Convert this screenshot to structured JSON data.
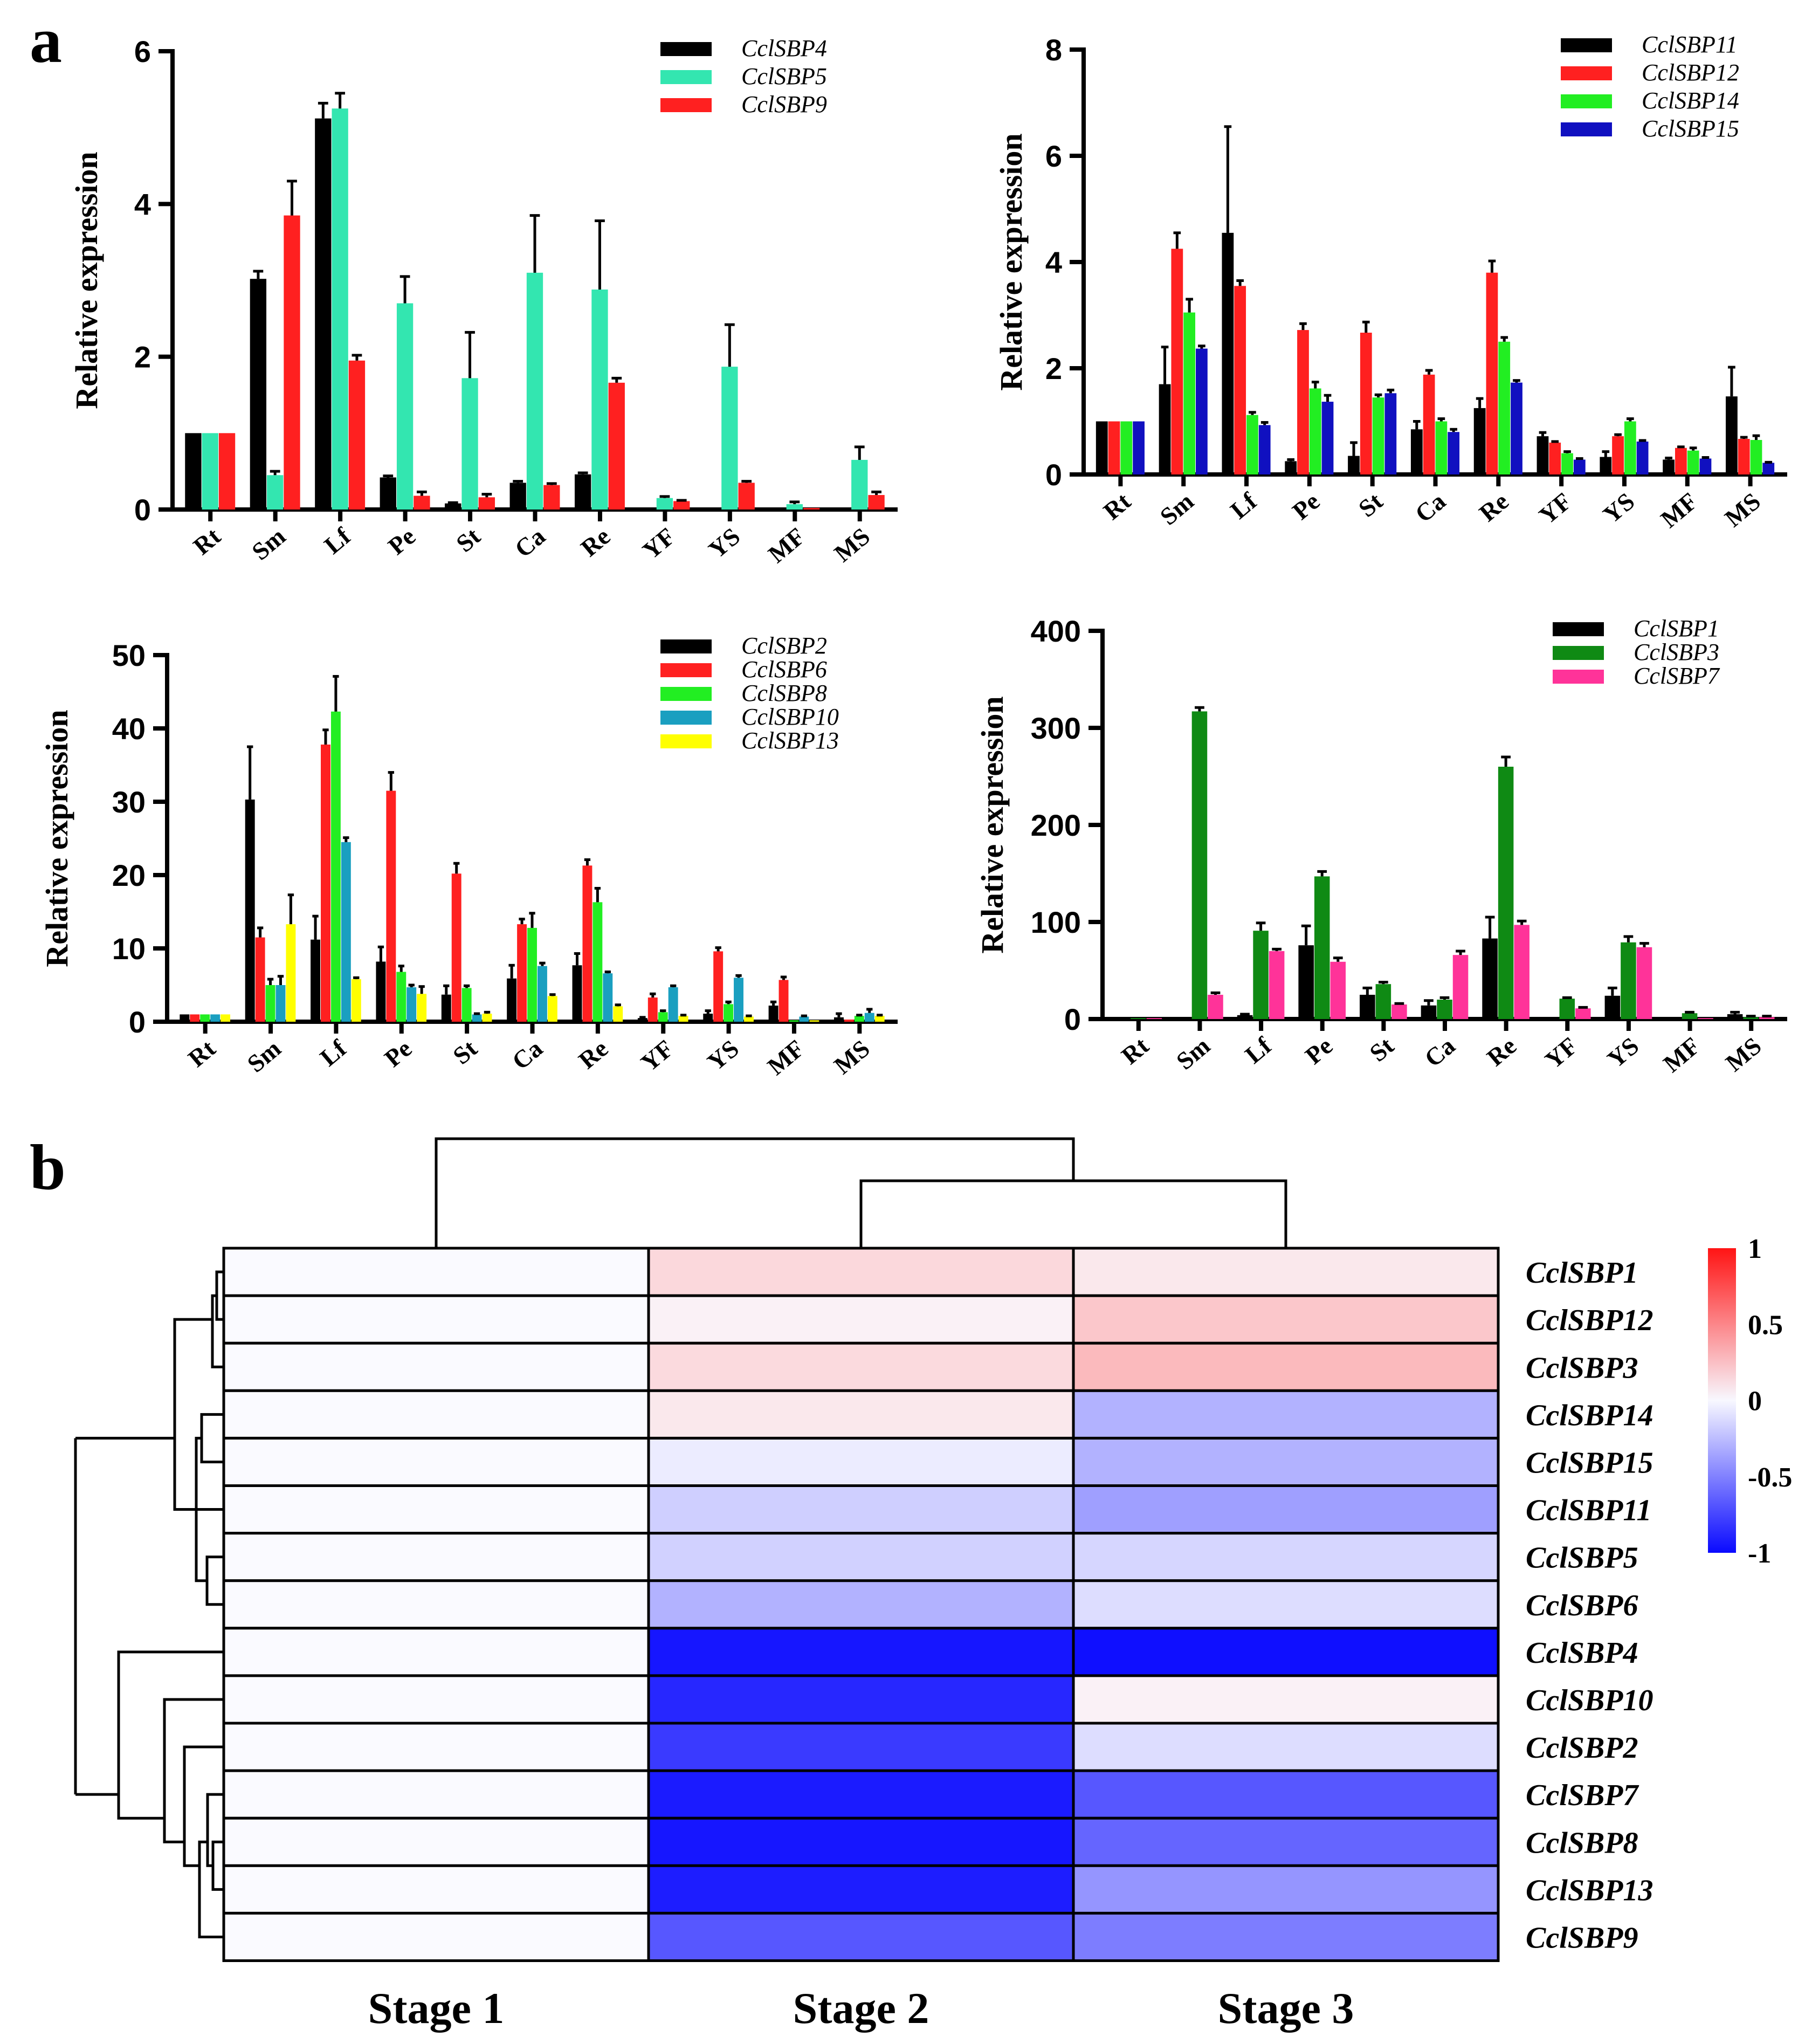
{
  "panel_labels": {
    "a": "a",
    "b": "b"
  },
  "chart_data": [
    {
      "type": "bar",
      "ylabel": "Relative expression",
      "categories": [
        "Rt",
        "Sm",
        "Lf",
        "Pe",
        "St",
        "Ca",
        "Re",
        "YF",
        "YS",
        "MF",
        "MS"
      ],
      "ylim": [
        0,
        6
      ],
      "yticks": [
        0,
        2,
        4,
        6
      ],
      "series": [
        {
          "name": "CclSBP4",
          "color": "#000000",
          "values": [
            1,
            3.02,
            5.12,
            0.42,
            0.08,
            0.35,
            0.46,
            0.02,
            0.0,
            0.0,
            0.02
          ],
          "errors": [
            0,
            0.1,
            0.2,
            0.02,
            0.01,
            0.02,
            0.02,
            0,
            0,
            0,
            0
          ]
        },
        {
          "name": "CclSBP5",
          "color": "#33e6b0",
          "values": [
            1,
            0.45,
            5.25,
            2.7,
            1.72,
            3.1,
            2.88,
            0.15,
            1.87,
            0.07,
            0.65
          ],
          "errors": [
            0,
            0.05,
            0.2,
            0.35,
            0.6,
            0.75,
            0.9,
            0.02,
            0.55,
            0.03,
            0.17
          ]
        },
        {
          "name": "CclSBP9",
          "color": "#ff2020",
          "values": [
            1,
            3.85,
            1.95,
            0.18,
            0.16,
            0.32,
            1.66,
            0.11,
            0.35,
            0.02,
            0.19
          ],
          "errors": [
            0,
            0.45,
            0.07,
            0.05,
            0.04,
            0.02,
            0.06,
            0.01,
            0.02,
            0,
            0.04
          ]
        }
      ]
    },
    {
      "type": "bar",
      "ylabel": "Relative expression",
      "categories": [
        "Rt",
        "Sm",
        "Lf",
        "Pe",
        "St",
        "Ca",
        "Re",
        "YF",
        "YS",
        "MF",
        "MS"
      ],
      "ylim": [
        0,
        8
      ],
      "yticks": [
        0,
        2,
        4,
        6,
        8
      ],
      "series": [
        {
          "name": "CclSBP11",
          "color": "#000000",
          "values": [
            1,
            1.7,
            4.55,
            0.25,
            0.35,
            0.85,
            1.25,
            0.72,
            0.33,
            0.28,
            1.47
          ],
          "errors": [
            0,
            0.7,
            2.0,
            0.03,
            0.25,
            0.15,
            0.18,
            0.07,
            0.1,
            0.03,
            0.55
          ]
        },
        {
          "name": "CclSBP12",
          "color": "#ff2020",
          "values": [
            1,
            4.25,
            3.55,
            2.72,
            2.67,
            1.88,
            3.8,
            0.6,
            0.72,
            0.5,
            0.67
          ],
          "errors": [
            0,
            0.3,
            0.1,
            0.12,
            0.2,
            0.08,
            0.22,
            0.02,
            0.03,
            0.02,
            0.03
          ]
        },
        {
          "name": "CclSBP14",
          "color": "#22ee22",
          "values": [
            1,
            3.05,
            1.12,
            1.62,
            1.45,
            1.0,
            2.5,
            0.4,
            1.0,
            0.45,
            0.65
          ],
          "errors": [
            0,
            0.25,
            0.05,
            0.12,
            0.05,
            0.05,
            0.08,
            0.03,
            0.05,
            0.05,
            0.08
          ]
        },
        {
          "name": "CclSBP15",
          "color": "#1010c0",
          "values": [
            1,
            2.37,
            0.93,
            1.37,
            1.53,
            0.8,
            1.73,
            0.28,
            0.62,
            0.3,
            0.22
          ],
          "errors": [
            0,
            0.05,
            0.05,
            0.12,
            0.06,
            0.05,
            0.04,
            0.02,
            0.02,
            0.02,
            0.01
          ]
        }
      ]
    },
    {
      "type": "bar",
      "ylabel": "Relative expression",
      "categories": [
        "Rt",
        "Sm",
        "Lf",
        "Pe",
        "St",
        "Ca",
        "Re",
        "YF",
        "YS",
        "MF",
        "MS"
      ],
      "ylim": [
        0,
        50
      ],
      "yticks": [
        0,
        10,
        20,
        30,
        40,
        50
      ],
      "series": [
        {
          "name": "CclSBP2",
          "color": "#000000",
          "values": [
            1,
            30.3,
            11.2,
            8.2,
            3.7,
            5.9,
            7.7,
            0.5,
            1.1,
            2.2,
            0.6
          ],
          "errors": [
            0,
            7.2,
            3.2,
            2.0,
            1.2,
            1.8,
            1.6,
            0.1,
            0.4,
            0.5,
            0.5
          ]
        },
        {
          "name": "CclSBP6",
          "color": "#ff2020",
          "values": [
            1,
            11.5,
            37.8,
            31.5,
            20.2,
            13.3,
            21.3,
            3.3,
            9.6,
            5.7,
            0.3
          ],
          "errors": [
            0,
            1.3,
            2.0,
            2.5,
            1.4,
            0.7,
            0.8,
            0.5,
            0.5,
            0.4,
            0
          ]
        },
        {
          "name": "CclSBP8",
          "color": "#22ee22",
          "values": [
            1,
            5.0,
            42.3,
            6.8,
            4.6,
            12.8,
            16.3,
            1.3,
            2.4,
            0.2,
            0.8
          ],
          "errors": [
            0,
            0.8,
            4.8,
            0.8,
            0.3,
            2.0,
            1.9,
            0.2,
            0.3,
            0,
            0.1
          ]
        },
        {
          "name": "CclSBP10",
          "color": "#1a9fc0",
          "values": [
            1,
            5.0,
            24.5,
            4.7,
            1.0,
            7.6,
            6.6,
            4.7,
            6.0,
            0.7,
            1.2
          ],
          "errors": [
            0,
            1.2,
            0.6,
            0.3,
            0.1,
            0.4,
            0.2,
            0.2,
            0.3,
            0.1,
            0.5
          ]
        },
        {
          "name": "CclSBP13",
          "color": "#ffff00",
          "values": [
            1,
            13.3,
            5.8,
            3.8,
            1.1,
            3.5,
            2.1,
            0.8,
            0.7,
            0.2,
            0.8
          ],
          "errors": [
            0,
            4.0,
            0.2,
            1.0,
            0.2,
            0.2,
            0.2,
            0.1,
            0.1,
            0,
            0.1
          ]
        }
      ]
    },
    {
      "type": "bar",
      "ylabel": "Relative expression",
      "categories": [
        "Rt",
        "Sm",
        "Lf",
        "Pe",
        "St",
        "Ca",
        "Re",
        "YF",
        "YS",
        "MF",
        "MS"
      ],
      "ylim": [
        0,
        400
      ],
      "yticks": [
        0,
        100,
        200,
        300,
        400
      ],
      "series": [
        {
          "name": "CclSBP1",
          "color": "#000000",
          "values": [
            1,
            0.5,
            4,
            76,
            25,
            14,
            83,
            1,
            24,
            1,
            5
          ],
          "errors": [
            0,
            0,
            1,
            20,
            7,
            5,
            22,
            0,
            8,
            0,
            2
          ]
        },
        {
          "name": "CclSBP3",
          "color": "#0f8a14",
          "values": [
            1,
            317,
            91,
            147,
            36,
            20,
            260,
            21,
            79,
            6,
            2
          ],
          "errors": [
            0,
            4,
            8,
            5,
            2,
            2,
            10,
            1,
            6,
            1,
            1
          ]
        },
        {
          "name": "CclSBP7",
          "color": "#ff3399",
          "values": [
            1,
            25,
            70,
            59,
            15,
            66,
            97,
            11,
            74,
            1,
            2
          ],
          "errors": [
            0,
            2,
            2,
            4,
            1,
            4,
            4,
            1,
            4,
            0,
            1
          ]
        }
      ]
    },
    {
      "type": "heatmap",
      "columns": [
        "Stage 1",
        "Stage 2",
        "Stage 3"
      ],
      "rows": [
        "CclSBP1",
        "CclSBP12",
        "CclSBP3",
        "CclSBP14",
        "CclSBP15",
        "CclSBP11",
        "CclSBP5",
        "CclSBP6",
        "CclSBP4",
        "CclSBP10",
        "CclSBP2",
        "CclSBP7",
        "CclSBP8",
        "CclSBP13",
        "CclSBP9"
      ],
      "values": [
        [
          0,
          0.15,
          0.08
        ],
        [
          0,
          0.04,
          0.22
        ],
        [
          0,
          0.14,
          0.28
        ],
        [
          0,
          0.08,
          -0.3
        ],
        [
          0,
          -0.06,
          -0.3
        ],
        [
          0,
          -0.18,
          -0.38
        ],
        [
          0,
          -0.17,
          -0.15
        ],
        [
          0,
          -0.3,
          -0.12
        ],
        [
          0,
          -0.95,
          -0.98
        ],
        [
          0,
          -0.88,
          0.04
        ],
        [
          0,
          -0.8,
          -0.12
        ],
        [
          0,
          -0.93,
          -0.68
        ],
        [
          0,
          -0.95,
          -0.62
        ],
        [
          0,
          -0.92,
          -0.42
        ],
        [
          0,
          -0.68,
          -0.52
        ]
      ],
      "colorbar": {
        "min": -1,
        "max": 1,
        "ticks": [
          "1",
          "0.5",
          "0",
          "-0.5",
          "-1"
        ]
      }
    }
  ]
}
